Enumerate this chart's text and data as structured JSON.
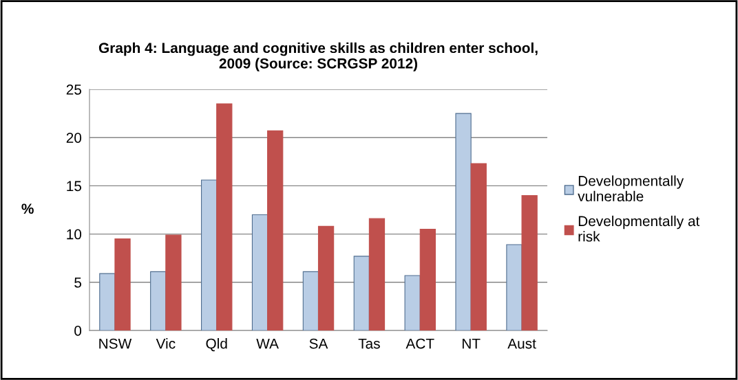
{
  "chart_data": {
    "type": "bar",
    "title": "Graph 4: Language and cognitive skills as children enter school,\n2009 (Source: SCRGSP 2012)",
    "ylabel": "%",
    "categories": [
      "NSW",
      "Vic",
      "Qld",
      "WA",
      "SA",
      "Tas",
      "ACT",
      "NT",
      "Aust"
    ],
    "series": [
      {
        "name": "Developmentally\nvulnerable",
        "color": "#b9cde5",
        "values": [
          5.9,
          6.1,
          15.6,
          12.0,
          6.1,
          7.7,
          5.7,
          22.5,
          8.9
        ]
      },
      {
        "name": "Developmentally at\nrisk",
        "color": "#c0504d",
        "values": [
          9.5,
          9.9,
          23.5,
          20.7,
          10.8,
          11.6,
          10.5,
          17.3,
          14.0
        ]
      }
    ],
    "ylim": [
      0,
      25
    ],
    "yticks": [
      0,
      5,
      10,
      15,
      20,
      25
    ],
    "grid": "y",
    "legend": "right"
  }
}
